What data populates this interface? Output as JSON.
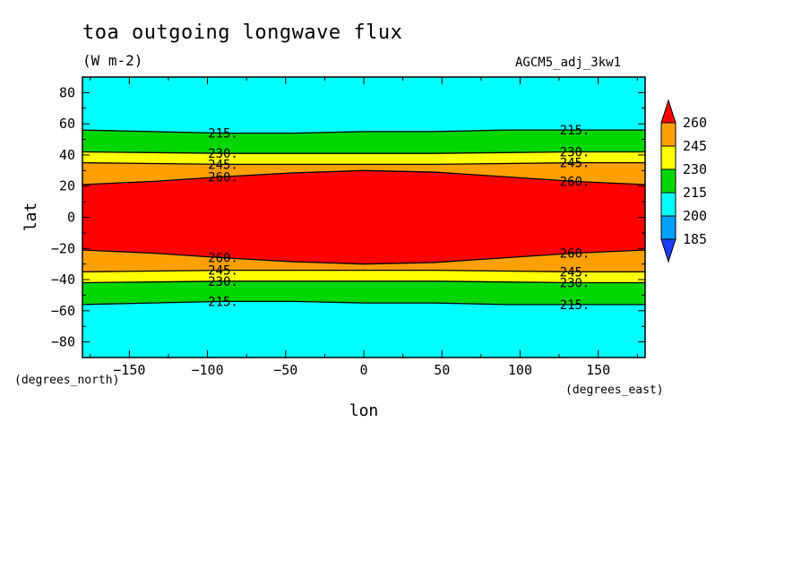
{
  "title": "toa outgoing longwave flux",
  "units": "(W m-2)",
  "run_label": "AGCM5_adj_3kw1",
  "chart_data": {
    "type": "contour",
    "xlabel": "lon",
    "ylabel": "lat",
    "x_unit": "(degrees_east)",
    "y_unit": "(degrees_north)",
    "xlim": [
      -180,
      180
    ],
    "ylim": [
      -90,
      90
    ],
    "xticks": [
      -150,
      -100,
      -50,
      0,
      50,
      100,
      150
    ],
    "yticks": [
      -80,
      -60,
      -40,
      -20,
      0,
      20,
      40,
      60,
      80
    ],
    "contour_levels": [
      215,
      230,
      245,
      260
    ],
    "contour_label_text": [
      "215.",
      "230.",
      "245.",
      "260."
    ],
    "colorbar": {
      "labels": [
        "260",
        "245",
        "230",
        "215",
        "200",
        "185"
      ],
      "colors": {
        "above_260": "#ff0000",
        "245_260": "#ffa000",
        "230_245": "#ffff00",
        "215_230": "#00d700",
        "200_215": "#00ffff",
        "185_200": "#00a0ff",
        "below_185": "#1e3cff"
      }
    },
    "contours_lat_at_lon": {
      "lon": [
        -180,
        -135,
        -90,
        -45,
        0,
        45,
        90,
        135,
        180
      ],
      "north_215": [
        56,
        55,
        54,
        54,
        55,
        55,
        56,
        56,
        56
      ],
      "north_230": [
        42,
        41.5,
        41,
        41,
        41,
        41,
        41.5,
        42,
        42
      ],
      "north_245": [
        35,
        34.5,
        34,
        34,
        34,
        34,
        34.5,
        35,
        35
      ],
      "north_260": [
        21,
        23,
        26,
        28.5,
        30,
        29,
        26,
        23,
        21
      ],
      "south_215": [
        -56,
        -55,
        -54,
        -54,
        -55,
        -55,
        -56,
        -56,
        -56
      ],
      "south_230": [
        -42,
        -41.5,
        -41,
        -41,
        -41,
        -41,
        -41.5,
        -42,
        -42
      ],
      "south_245": [
        -35,
        -34.5,
        -34,
        -34,
        -34,
        -34,
        -34.5,
        -35,
        -35
      ],
      "south_260": [
        -21,
        -23,
        -26,
        -28.5,
        -30,
        -29,
        -26,
        -23,
        -21
      ]
    },
    "grid": false,
    "legend": "colorbar-right"
  }
}
